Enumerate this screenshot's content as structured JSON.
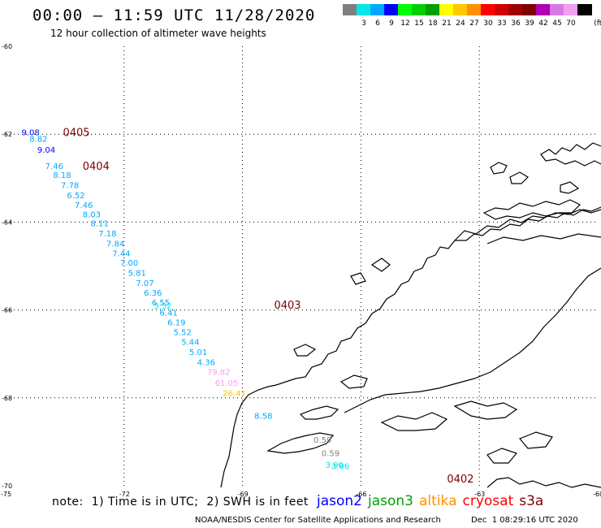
{
  "header": {
    "title": "00:00 – 11:59 UTC 11/28/2020",
    "subtitle": "12 hour collection of altimeter wave heights"
  },
  "scale": {
    "unit": "(ft)",
    "bins": [
      {
        "label": "",
        "color": "#808080"
      },
      {
        "label": "3",
        "color": "#00e8e8"
      },
      {
        "label": "6",
        "color": "#00a8ff"
      },
      {
        "label": "9",
        "color": "#0000ff"
      },
      {
        "label": "12",
        "color": "#00ff00"
      },
      {
        "label": "15",
        "color": "#00d000"
      },
      {
        "label": "18",
        "color": "#00a000"
      },
      {
        "label": "21",
        "color": "#ffff00"
      },
      {
        "label": "24",
        "color": "#ffc800"
      },
      {
        "label": "27",
        "color": "#ff9000"
      },
      {
        "label": "30",
        "color": "#ff0000"
      },
      {
        "label": "33",
        "color": "#d00000"
      },
      {
        "label": "36",
        "color": "#a00000"
      },
      {
        "label": "39",
        "color": "#800000"
      },
      {
        "label": "42",
        "color": "#b000b0"
      },
      {
        "label": "45",
        "color": "#d878e8"
      },
      {
        "label": "70",
        "color": "#f0a0f0"
      },
      {
        "label": "",
        "color": "#000000"
      }
    ]
  },
  "axes": {
    "lat_labels": [
      "-60",
      "-62",
      "-64",
      "-66",
      "-68",
      "-70"
    ],
    "lon_labels": [
      "-75",
      "-72",
      "-69",
      "-66",
      "-63",
      "-60"
    ]
  },
  "passes": [
    {
      "id": "0405",
      "lon": -73.55,
      "lat": -61.95
    },
    {
      "id": "0404",
      "lon": -73.05,
      "lat": -62.72
    },
    {
      "id": "0403",
      "lon": -68.2,
      "lat": -65.88
    },
    {
      "id": "0402",
      "lon": -63.82,
      "lat": -69.83
    }
  ],
  "observations": [
    {
      "v": "9.08",
      "lon": -74.6,
      "lat": -61.95,
      "color": "#0000ff"
    },
    {
      "v": "8.82",
      "lon": -74.4,
      "lat": -62.1,
      "color": "#00a8ff"
    },
    {
      "v": "9.04",
      "lon": -74.2,
      "lat": -62.35,
      "color": "#0000ff"
    },
    {
      "v": "7.46",
      "lon": -74.0,
      "lat": -62.72,
      "color": "#00a8ff"
    },
    {
      "v": "8.18",
      "lon": -73.8,
      "lat": -62.92,
      "color": "#00a8ff"
    },
    {
      "v": "7.78",
      "lon": -73.6,
      "lat": -63.15,
      "color": "#00a8ff"
    },
    {
      "v": "6.52",
      "lon": -73.45,
      "lat": -63.38,
      "color": "#00a8ff"
    },
    {
      "v": "7.46",
      "lon": -73.25,
      "lat": -63.6,
      "color": "#00a8ff"
    },
    {
      "v": "8.03",
      "lon": -73.05,
      "lat": -63.82,
      "color": "#00a8ff"
    },
    {
      "v": "8.11",
      "lon": -72.85,
      "lat": -64.02,
      "color": "#00a8ff"
    },
    {
      "v": "7.18",
      "lon": -72.65,
      "lat": -64.25,
      "color": "#00a8ff"
    },
    {
      "v": "7.84",
      "lon": -72.45,
      "lat": -64.48,
      "color": "#00a8ff"
    },
    {
      "v": "7.44",
      "lon": -72.3,
      "lat": -64.7,
      "color": "#00a8ff"
    },
    {
      "v": "7.00",
      "lon": -72.1,
      "lat": -64.92,
      "color": "#00a8ff"
    },
    {
      "v": "5.81",
      "lon": -71.9,
      "lat": -65.15,
      "color": "#00a8ff"
    },
    {
      "v": "7.07",
      "lon": -71.7,
      "lat": -65.38,
      "color": "#00a8ff"
    },
    {
      "v": "6.36",
      "lon": -71.5,
      "lat": -65.6,
      "color": "#00a8ff"
    },
    {
      "v": "6.55",
      "lon": -71.3,
      "lat": -65.82,
      "color": "#00a8ff"
    },
    {
      "v": "5.32",
      "lon": -71.25,
      "lat": -65.9,
      "color": "#00e8e8"
    },
    {
      "v": "6.41",
      "lon": -71.1,
      "lat": -66.05,
      "color": "#00a8ff"
    },
    {
      "v": "6.19",
      "lon": -70.9,
      "lat": -66.28,
      "color": "#00a8ff"
    },
    {
      "v": "5.52",
      "lon": -70.75,
      "lat": -66.5,
      "color": "#00a8ff"
    },
    {
      "v": "5.44",
      "lon": -70.55,
      "lat": -66.72,
      "color": "#00a8ff"
    },
    {
      "v": "5.01",
      "lon": -70.35,
      "lat": -66.95,
      "color": "#00a8ff"
    },
    {
      "v": "4.36",
      "lon": -70.15,
      "lat": -67.18,
      "color": "#00a8ff"
    },
    {
      "v": "79.82",
      "lon": -69.9,
      "lat": -67.4,
      "color": "#f0a0f0"
    },
    {
      "v": "61.05",
      "lon": -69.7,
      "lat": -67.65,
      "color": "#f0a0f0"
    },
    {
      "v": "26.41",
      "lon": -69.5,
      "lat": -67.88,
      "color": "#ffc800"
    },
    {
      "v": "8.58",
      "lon": -68.7,
      "lat": -68.4,
      "color": "#00a8ff"
    },
    {
      "v": "0.59",
      "lon": -67.2,
      "lat": -68.95,
      "color": "#808080"
    },
    {
      "v": "0.59",
      "lon": -67.0,
      "lat": -69.25,
      "color": "#808080"
    },
    {
      "v": "3.90",
      "lon": -66.9,
      "lat": -69.52,
      "color": "#00e8e8"
    },
    {
      "v": "3.96",
      "lon": -66.75,
      "lat": -69.55,
      "color": "#00e8e8"
    }
  ],
  "note": "note:  1) Time is in UTC;  2) SWH is in feet",
  "legend": [
    {
      "label": "jason2",
      "color": "#0000ff"
    },
    {
      "label": "jason3",
      "color": "#00a000"
    },
    {
      "label": "altika",
      "color": "#ff9000"
    },
    {
      "label": "cryosat",
      "color": "#ff0000"
    },
    {
      "label": "s3a",
      "color": "#800000"
    }
  ],
  "footer": {
    "credit": "NOAA/NESDIS Center for Satellite Applications and Research",
    "timestamp": "Dec  1 08:29:16 UTC 2020"
  }
}
